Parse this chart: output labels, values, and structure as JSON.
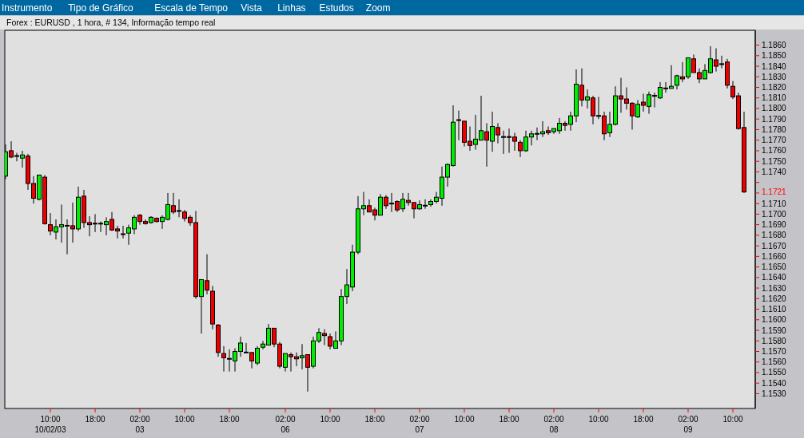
{
  "chart_data": {
    "type": "candlestick",
    "title": "Forex : EURUSD , 1 hora, # 134, Informação tempo real",
    "annotations": [
      "Instrumento",
      "Tipo de Gráfico",
      "Escala de Tempo",
      "Vista",
      "Linhas",
      "Estudos",
      "Zoom",
      "1.1721"
    ],
    "categories": [
      null,
      null,
      null,
      null,
      null,
      null,
      null,
      null,
      "10:00\n10/02/03",
      null,
      null,
      null,
      null,
      null,
      null,
      null,
      "18:00",
      null,
      null,
      null,
      null,
      null,
      null,
      null,
      "02:00\n03",
      null,
      null,
      null,
      null,
      null,
      null,
      null,
      "10:00",
      null,
      null,
      null,
      null,
      null,
      null,
      null,
      "18:00",
      null,
      null,
      null,
      null,
      null,
      null,
      null,
      null,
      null,
      "02:00\n06",
      null,
      null,
      null,
      null,
      null,
      null,
      null,
      "10:00",
      null,
      null,
      null,
      null,
      null,
      null,
      null,
      "18:00",
      null,
      null,
      null,
      null,
      null,
      null,
      null,
      "02:00\n07",
      null,
      null,
      null,
      null,
      null,
      null,
      null,
      "10:00",
      null,
      null,
      null,
      null,
      null,
      null,
      null,
      "18:00",
      null,
      null,
      null,
      null,
      null,
      null,
      null,
      "02:00\n08",
      null,
      null,
      null,
      null,
      null,
      null,
      null,
      "10:00",
      null,
      null,
      null,
      null,
      null,
      null,
      null,
      "18:00",
      null,
      null,
      null,
      null,
      null,
      null,
      null,
      "02:00\n09",
      null,
      null,
      null,
      null,
      null,
      null,
      null,
      "10:00",
      null,
      null
    ],
    "ohlc": [
      [
        1.1736,
        1.1766,
        1.1733,
        1.1759
      ],
      [
        1.176,
        1.1769,
        1.1753,
        1.1754
      ],
      [
        1.1754,
        1.1758,
        1.175,
        1.1755
      ],
      [
        1.1753,
        1.176,
        1.1744,
        1.1756
      ],
      [
        1.1755,
        1.1757,
        1.1723,
        1.1729
      ],
      [
        1.1729,
        1.1736,
        1.171,
        1.1715
      ],
      [
        1.1714,
        1.1737,
        1.1713,
        1.1737
      ],
      [
        1.1735,
        1.1737,
        1.169,
        1.1691
      ],
      [
        1.169,
        1.1701,
        1.168,
        1.1684
      ],
      [
        1.1683,
        1.1695,
        1.1676,
        1.1688
      ],
      [
        1.1688,
        1.1709,
        1.1673,
        1.169
      ],
      [
        1.1689,
        1.1695,
        1.1662,
        1.1689
      ],
      [
        1.1689,
        1.1711,
        1.1673,
        1.1686
      ],
      [
        1.1686,
        1.1726,
        1.1684,
        1.1716
      ],
      [
        1.1717,
        1.1723,
        1.1687,
        1.1692
      ],
      [
        1.1692,
        1.1698,
        1.1679,
        1.169
      ],
      [
        1.169,
        1.17,
        1.1683,
        1.1691
      ],
      [
        1.169,
        1.1693,
        1.1683,
        1.1691
      ],
      [
        1.169,
        1.1697,
        1.168,
        1.1693
      ],
      [
        1.1695,
        1.1702,
        1.1684,
        1.1685
      ],
      [
        1.1686,
        1.1689,
        1.1677,
        1.1684
      ],
      [
        1.1681,
        1.1689,
        1.1677,
        1.1681
      ],
      [
        1.1682,
        1.169,
        1.1671,
        1.1687
      ],
      [
        1.1686,
        1.1699,
        1.1681,
        1.1697
      ],
      [
        1.1699,
        1.17,
        1.169,
        1.1693
      ],
      [
        1.1693,
        1.1695,
        1.169,
        1.1691
      ],
      [
        1.1692,
        1.1698,
        1.1691,
        1.1697
      ],
      [
        1.1696,
        1.1697,
        1.1692,
        1.1693
      ],
      [
        1.1693,
        1.1699,
        1.1686,
        1.1697
      ],
      [
        1.1695,
        1.172,
        1.1694,
        1.1709
      ],
      [
        1.1708,
        1.172,
        1.17,
        1.1702
      ],
      [
        1.1703,
        1.1714,
        1.1697,
        1.1703
      ],
      [
        1.1702,
        1.1704,
        1.1693,
        1.1696
      ],
      [
        1.1697,
        1.1699,
        1.1689,
        1.1692
      ],
      [
        1.1692,
        1.1703,
        1.162,
        1.1622
      ],
      [
        1.1622,
        1.1638,
        1.1587,
        1.1638
      ],
      [
        1.1637,
        1.1662,
        1.1624,
        1.1628
      ],
      [
        1.1627,
        1.1632,
        1.1591,
        1.1596
      ],
      [
        1.1595,
        1.1596,
        1.1565,
        1.1569
      ],
      [
        1.1568,
        1.1575,
        1.1551,
        1.1564
      ],
      [
        1.1563,
        1.1572,
        1.1551,
        1.1563
      ],
      [
        1.1561,
        1.1573,
        1.1551,
        1.157
      ],
      [
        1.157,
        1.1584,
        1.1565,
        1.1578
      ],
      [
        1.1569,
        1.1578,
        1.1569,
        1.1569
      ],
      [
        1.1569,
        1.1569,
        1.1554,
        1.1561
      ],
      [
        1.1559,
        1.1575,
        1.1557,
        1.1573
      ],
      [
        1.1574,
        1.158,
        1.1572,
        1.1577
      ],
      [
        1.1576,
        1.1596,
        1.1576,
        1.1592
      ],
      [
        1.1592,
        1.1592,
        1.1574,
        1.1577
      ],
      [
        1.1577,
        1.1579,
        1.1554,
        1.1556
      ],
      [
        1.1555,
        1.1568,
        1.1551,
        1.1568
      ],
      [
        1.1567,
        1.1569,
        1.1551,
        1.1565
      ],
      [
        1.1565,
        1.1569,
        1.1556,
        1.1563
      ],
      [
        1.1564,
        1.1577,
        1.1553,
        1.1566
      ],
      [
        1.1567,
        1.1567,
        1.1532,
        1.1555
      ],
      [
        1.1556,
        1.1584,
        1.1554,
        1.158
      ],
      [
        1.158,
        1.1592,
        1.1578,
        1.1588
      ],
      [
        1.1587,
        1.1591,
        1.1576,
        1.1585
      ],
      [
        1.1584,
        1.1587,
        1.1572,
        1.1575
      ],
      [
        1.1573,
        1.1589,
        1.1573,
        1.158
      ],
      [
        1.158,
        1.1629,
        1.1576,
        1.1622
      ],
      [
        1.1622,
        1.1648,
        1.1615,
        1.1633
      ],
      [
        1.1631,
        1.1671,
        1.1627,
        1.1664
      ],
      [
        1.1664,
        1.1717,
        1.1662,
        1.1705
      ],
      [
        1.1705,
        1.1721,
        1.1699,
        1.1708
      ],
      [
        1.1708,
        1.1714,
        1.1702,
        1.1702
      ],
      [
        1.1704,
        1.1706,
        1.1694,
        1.1699
      ],
      [
        1.1699,
        1.1719,
        1.1699,
        1.1716
      ],
      [
        1.1716,
        1.1718,
        1.1705,
        1.1708
      ],
      [
        1.171,
        1.172,
        1.1702,
        1.171
      ],
      [
        1.1712,
        1.1713,
        1.1702,
        1.1704
      ],
      [
        1.1705,
        1.172,
        1.1702,
        1.1714
      ],
      [
        1.1713,
        1.172,
        1.1708,
        1.1711
      ],
      [
        1.1711,
        1.1711,
        1.1696,
        1.1705
      ],
      [
        1.1705,
        1.1713,
        1.1704,
        1.1709
      ],
      [
        1.1708,
        1.1714,
        1.1705,
        1.1708
      ],
      [
        1.1709,
        1.1714,
        1.1707,
        1.1712
      ],
      [
        1.1712,
        1.1721,
        1.171,
        1.1716
      ],
      [
        1.1715,
        1.1745,
        1.1708,
        1.1735
      ],
      [
        1.1735,
        1.1748,
        1.1726,
        1.1747
      ],
      [
        1.1746,
        1.1803,
        1.1745,
        1.1787
      ],
      [
        1.1789,
        1.1798,
        1.177,
        1.1789
      ],
      [
        1.1788,
        1.1788,
        1.1764,
        1.1768
      ],
      [
        1.1769,
        1.1783,
        1.176,
        1.1765
      ],
      [
        1.1766,
        1.1794,
        1.1761,
        1.1771
      ],
      [
        1.177,
        1.1812,
        1.177,
        1.1779
      ],
      [
        1.1778,
        1.1786,
        1.1745,
        1.177
      ],
      [
        1.1769,
        1.1797,
        1.1759,
        1.1783
      ],
      [
        1.1782,
        1.1786,
        1.1767,
        1.1775
      ],
      [
        1.1773,
        1.1779,
        1.1757,
        1.1773
      ],
      [
        1.1773,
        1.1781,
        1.1758,
        1.1773
      ],
      [
        1.1773,
        1.1777,
        1.176,
        1.1769
      ],
      [
        1.1768,
        1.177,
        1.1754,
        1.176
      ],
      [
        1.176,
        1.1779,
        1.1759,
        1.1773
      ],
      [
        1.1773,
        1.1779,
        1.1765,
        1.1776
      ],
      [
        1.1776,
        1.1782,
        1.177,
        1.1776
      ],
      [
        1.1776,
        1.1788,
        1.1773,
        1.1778
      ],
      [
        1.1779,
        1.1783,
        1.1775,
        1.1777
      ],
      [
        1.1778,
        1.1781,
        1.1776,
        1.1781
      ],
      [
        1.1779,
        1.1791,
        1.1776,
        1.1786
      ],
      [
        1.1786,
        1.1788,
        1.1779,
        1.1784
      ],
      [
        1.1785,
        1.1797,
        1.1779,
        1.1793
      ],
      [
        1.1793,
        1.1837,
        1.1787,
        1.1823
      ],
      [
        1.1822,
        1.1838,
        1.1802,
        1.1808
      ],
      [
        1.1808,
        1.1818,
        1.18,
        1.1811
      ],
      [
        1.181,
        1.1812,
        1.1785,
        1.1793
      ],
      [
        1.1793,
        1.1811,
        1.179,
        1.1793
      ],
      [
        1.1793,
        1.1797,
        1.177,
        1.1776
      ],
      [
        1.1777,
        1.1797,
        1.1773,
        1.1785
      ],
      [
        1.1785,
        1.1821,
        1.1784,
        1.1812
      ],
      [
        1.1812,
        1.1829,
        1.1796,
        1.1809
      ],
      [
        1.1809,
        1.182,
        1.1799,
        1.1805
      ],
      [
        1.1805,
        1.1806,
        1.178,
        1.1793
      ],
      [
        1.1792,
        1.1808,
        1.1791,
        1.1804
      ],
      [
        1.1806,
        1.1814,
        1.1797,
        1.1803
      ],
      [
        1.1802,
        1.1816,
        1.1795,
        1.1813
      ],
      [
        1.1812,
        1.1815,
        1.1801,
        1.1811
      ],
      [
        1.181,
        1.1825,
        1.1809,
        1.182
      ],
      [
        1.1819,
        1.1825,
        1.1815,
        1.1819
      ],
      [
        1.1819,
        1.1841,
        1.1819,
        1.1821
      ],
      [
        1.1822,
        1.1832,
        1.1818,
        1.1831
      ],
      [
        1.183,
        1.1844,
        1.1825,
        1.1828
      ],
      [
        1.183,
        1.1848,
        1.1828,
        1.1848
      ],
      [
        1.1847,
        1.1851,
        1.1834,
        1.1834
      ],
      [
        1.1834,
        1.1838,
        1.1824,
        1.1828
      ],
      [
        1.1828,
        1.1842,
        1.1828,
        1.1836
      ],
      [
        1.1834,
        1.1859,
        1.1833,
        1.1847
      ],
      [
        1.1846,
        1.1857,
        1.1835,
        1.184
      ],
      [
        1.1842,
        1.185,
        1.1838,
        1.1842
      ],
      [
        1.1844,
        1.1847,
        1.1819,
        1.1822
      ],
      [
        1.1821,
        1.1826,
        1.1809,
        1.1811
      ],
      [
        1.1812,
        1.1815,
        1.178,
        1.1781
      ],
      [
        1.1782,
        1.1797,
        1.172,
        1.1721
      ]
    ],
    "ylim": [
      1.1516,
      1.1874
    ],
    "yticks": [
      {
        "value": 1.153,
        "label": "1.1530"
      },
      {
        "value": 1.154,
        "label": "1.1540"
      },
      {
        "value": 1.155,
        "label": "1.1550"
      },
      {
        "value": 1.156,
        "label": "1.1560"
      },
      {
        "value": 1.157,
        "label": "1.1570"
      },
      {
        "value": 1.158,
        "label": "1.1580"
      },
      {
        "value": 1.159,
        "label": "1.1590"
      },
      {
        "value": 1.16,
        "label": "1.1600"
      },
      {
        "value": 1.161,
        "label": "1.1610"
      },
      {
        "value": 1.162,
        "label": "1.1620"
      },
      {
        "value": 1.163,
        "label": "1.1630"
      },
      {
        "value": 1.164,
        "label": "1.1640"
      },
      {
        "value": 1.165,
        "label": "1.1650"
      },
      {
        "value": 1.166,
        "label": "1.1660"
      },
      {
        "value": 1.167,
        "label": "1.1670"
      },
      {
        "value": 1.168,
        "label": "1.1680"
      },
      {
        "value": 1.169,
        "label": "1.1690"
      },
      {
        "value": 1.17,
        "label": "1.1700"
      },
      {
        "value": 1.171,
        "label": "1.1710"
      },
      {
        "value": 1.172,
        "label": null
      },
      {
        "value": 1.173,
        "label": null
      },
      {
        "value": 1.174,
        "label": "1.1740"
      },
      {
        "value": 1.175,
        "label": "1.1750"
      },
      {
        "value": 1.176,
        "label": "1.1760"
      },
      {
        "value": 1.177,
        "label": "1.1770"
      },
      {
        "value": 1.178,
        "label": "1.1780"
      },
      {
        "value": 1.179,
        "label": "1.1790"
      },
      {
        "value": 1.18,
        "label": "1.1800"
      },
      {
        "value": 1.181,
        "label": "1.1810"
      },
      {
        "value": 1.182,
        "label": "1.1820"
      },
      {
        "value": 1.183,
        "label": "1.1830"
      },
      {
        "value": 1.184,
        "label": "1.1840"
      },
      {
        "value": 1.185,
        "label": "1.1850"
      },
      {
        "value": 1.186,
        "label": "1.1860"
      }
    ],
    "grid": false
  }
}
